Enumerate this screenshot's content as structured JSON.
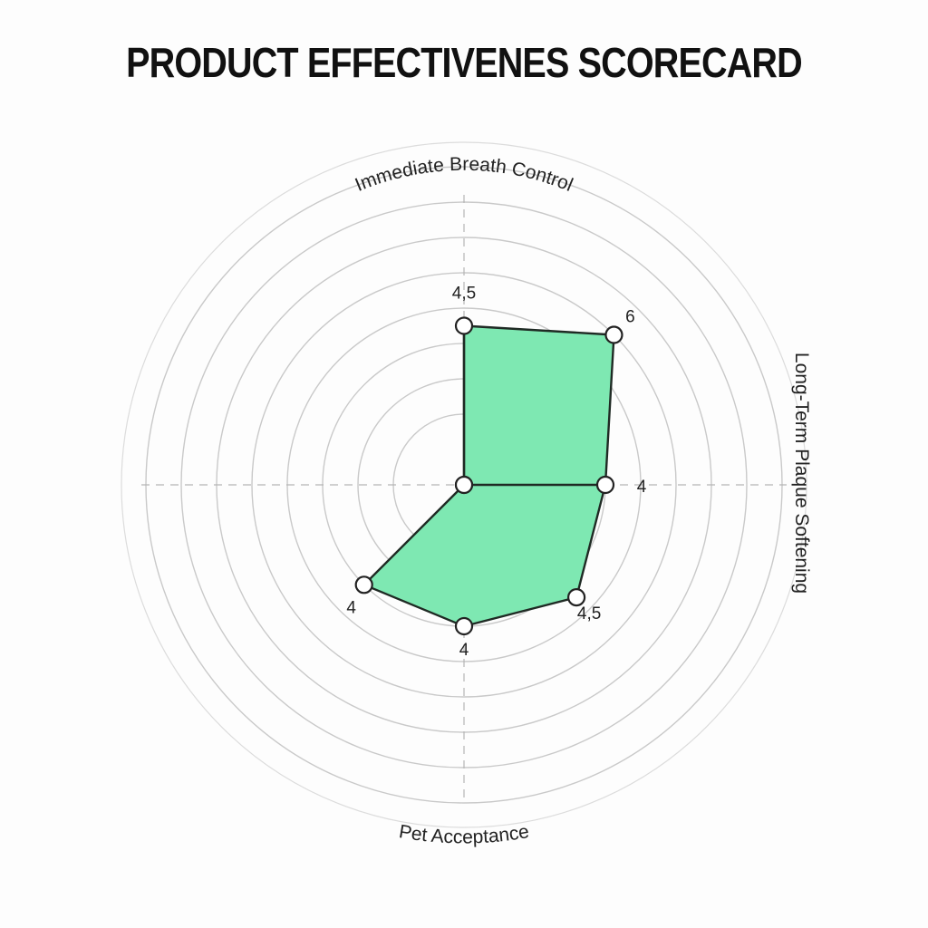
{
  "chart_data": {
    "type": "radar",
    "title": "PRODUCT EFFECTIVENES SCORECARD",
    "axes": [
      {
        "name": "Immediate Breath Control",
        "value": 4.5,
        "label": "4,5"
      },
      {
        "name": "",
        "value": 6,
        "label": "6"
      },
      {
        "name": "Long-Term Plaque Softening",
        "value": 4,
        "label": "4"
      },
      {
        "name": "",
        "value": 4.5,
        "label": "4,5"
      },
      {
        "name": "Pet Acceptance",
        "value": 4,
        "label": "4"
      },
      {
        "name": "",
        "value": 4,
        "label": "4"
      },
      {
        "name": "",
        "value": 0,
        "label": ""
      },
      {
        "name": "",
        "value": 0,
        "label": ""
      }
    ],
    "ring_count": 9,
    "grid": true,
    "colors": {
      "fill": "#7ee8b2",
      "stroke": "#1f2a24"
    }
  }
}
